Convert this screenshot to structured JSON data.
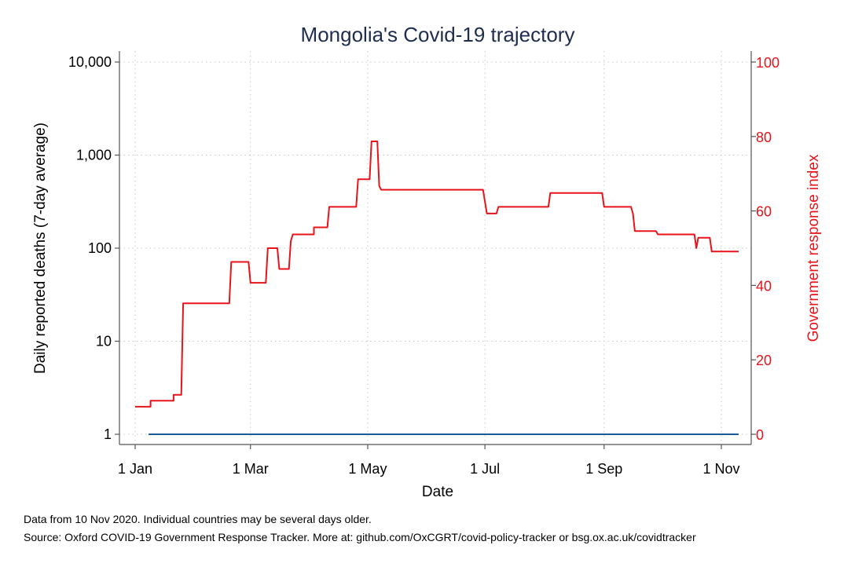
{
  "chart_data": {
    "type": "line",
    "title": "Mongolia's Covid-19 trajectory",
    "xlabel": "Date",
    "ylabel_left": "Daily reported deaths (7-day average)",
    "ylabel_right": "Government response index",
    "x_ticks": [
      {
        "date": "2020-01-01",
        "label": "1 Jan"
      },
      {
        "date": "2020-03-01",
        "label": "1 Mar"
      },
      {
        "date": "2020-05-01",
        "label": "1 May"
      },
      {
        "date": "2020-07-01",
        "label": "1 Jul"
      },
      {
        "date": "2020-09-01",
        "label": "1 Sep"
      },
      {
        "date": "2020-11-01",
        "label": "1 Nov"
      }
    ],
    "xlim": [
      "2020-01-01",
      "2020-11-10"
    ],
    "y_left": {
      "scale": "log",
      "ylim": [
        1,
        10000
      ],
      "ticks": [
        {
          "value": 1,
          "label": "1"
        },
        {
          "value": 10,
          "label": "10"
        },
        {
          "value": 100,
          "label": "100"
        },
        {
          "value": 1000,
          "label": "1,000"
        },
        {
          "value": 10000,
          "label": "10,000"
        }
      ]
    },
    "y_right": {
      "scale": "linear",
      "ylim": [
        0,
        100
      ],
      "ticks": [
        {
          "value": 0,
          "label": "0"
        },
        {
          "value": 20,
          "label": "20"
        },
        {
          "value": 40,
          "label": "40"
        },
        {
          "value": 60,
          "label": "60"
        },
        {
          "value": 80,
          "label": "80"
        },
        {
          "value": 100,
          "label": "100"
        }
      ]
    },
    "grid": true,
    "series": [
      {
        "axis": "left",
        "color": "#1a5a96",
        "points": [
          {
            "x": "2020-01-08",
            "y": 1
          },
          {
            "x": "2020-11-10",
            "y": 1
          }
        ]
      },
      {
        "axis": "right",
        "color": "#e8131b",
        "points": [
          {
            "x": "2020-01-01",
            "y": 7.4
          },
          {
            "x": "2020-01-09",
            "y": 7.4
          },
          {
            "x": "2020-01-09",
            "y": 9.0
          },
          {
            "x": "2020-01-21",
            "y": 9.0
          },
          {
            "x": "2020-01-21",
            "y": 10.6
          },
          {
            "x": "2020-01-25",
            "y": 10.6
          },
          {
            "x": "2020-01-26",
            "y": 35.2
          },
          {
            "x": "2020-02-19",
            "y": 35.2
          },
          {
            "x": "2020-02-20",
            "y": 46.3
          },
          {
            "x": "2020-02-29",
            "y": 46.3
          },
          {
            "x": "2020-03-01",
            "y": 40.7
          },
          {
            "x": "2020-03-09",
            "y": 40.7
          },
          {
            "x": "2020-03-10",
            "y": 50.0
          },
          {
            "x": "2020-03-15",
            "y": 50.0
          },
          {
            "x": "2020-03-16",
            "y": 44.4
          },
          {
            "x": "2020-03-21",
            "y": 44.4
          },
          {
            "x": "2020-03-22",
            "y": 51.9
          },
          {
            "x": "2020-03-23",
            "y": 53.7
          },
          {
            "x": "2020-04-03",
            "y": 53.7
          },
          {
            "x": "2020-04-03",
            "y": 55.6
          },
          {
            "x": "2020-04-10",
            "y": 55.6
          },
          {
            "x": "2020-04-11",
            "y": 61.1
          },
          {
            "x": "2020-04-25",
            "y": 61.1
          },
          {
            "x": "2020-04-26",
            "y": 68.5
          },
          {
            "x": "2020-05-02",
            "y": 68.5
          },
          {
            "x": "2020-05-03",
            "y": 78.7
          },
          {
            "x": "2020-05-06",
            "y": 78.7
          },
          {
            "x": "2020-05-07",
            "y": 66.7
          },
          {
            "x": "2020-05-08",
            "y": 65.7
          },
          {
            "x": "2020-06-30",
            "y": 65.7
          },
          {
            "x": "2020-07-02",
            "y": 59.3
          },
          {
            "x": "2020-07-07",
            "y": 59.3
          },
          {
            "x": "2020-07-08",
            "y": 61.1
          },
          {
            "x": "2020-08-03",
            "y": 61.1
          },
          {
            "x": "2020-08-04",
            "y": 64.8
          },
          {
            "x": "2020-08-31",
            "y": 64.8
          },
          {
            "x": "2020-09-01",
            "y": 61.1
          },
          {
            "x": "2020-09-15",
            "y": 61.1
          },
          {
            "x": "2020-09-16",
            "y": 59.3
          },
          {
            "x": "2020-09-17",
            "y": 54.6
          },
          {
            "x": "2020-09-28",
            "y": 54.6
          },
          {
            "x": "2020-09-29",
            "y": 53.7
          },
          {
            "x": "2020-10-18",
            "y": 53.7
          },
          {
            "x": "2020-10-19",
            "y": 50.0
          },
          {
            "x": "2020-10-20",
            "y": 52.8
          },
          {
            "x": "2020-10-26",
            "y": 52.8
          },
          {
            "x": "2020-10-27",
            "y": 49.1
          },
          {
            "x": "2020-11-10",
            "y": 49.1
          }
        ]
      }
    ]
  },
  "notes": {
    "line1": "Data from 10 Nov 2020. Individual countries may be several days older.",
    "line2": "Source: Oxford COVID-19 Government Response Tracker. More at: github.com/OxCGRT/covid-policy-tracker or bsg.ox.ac.uk/covidtracker"
  }
}
